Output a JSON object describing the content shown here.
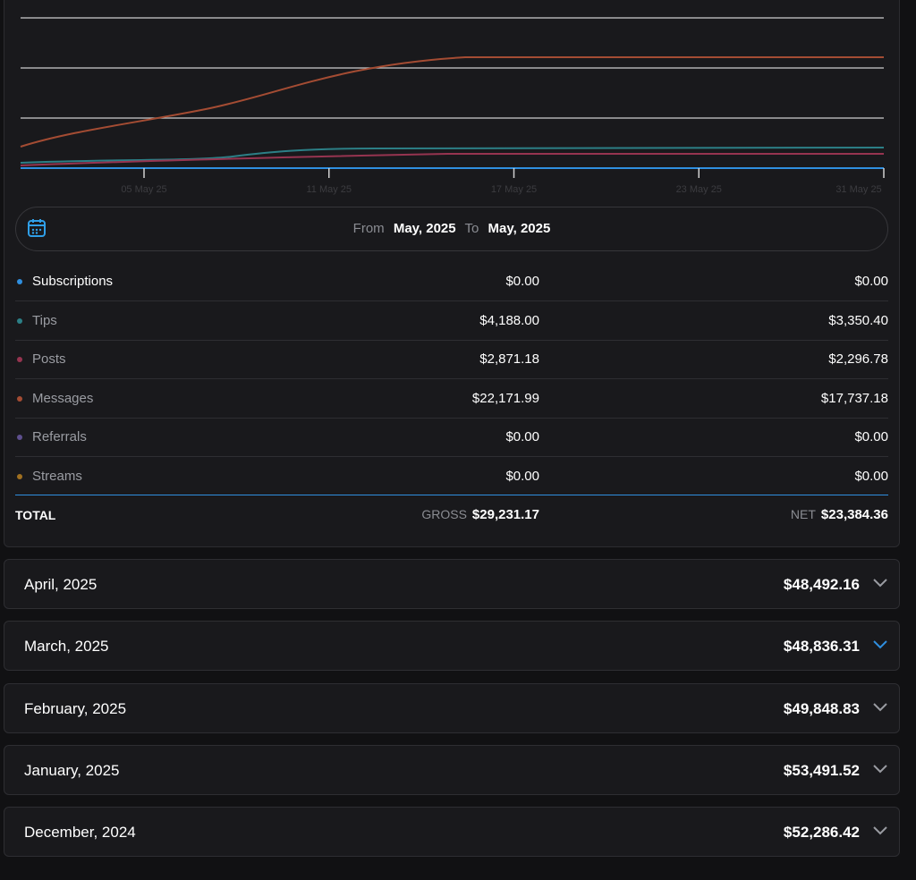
{
  "chart": {
    "x_tick_labels": [
      "05 May 25",
      "11 May 25",
      "17 May 25",
      "23 May 25",
      "31 May 25"
    ]
  },
  "date_range": {
    "from_label": "From",
    "from": "May, 2025",
    "to_label": "To",
    "to": "May, 2025"
  },
  "breakdown": {
    "rows": [
      {
        "name": "Subscriptions",
        "gross": "$0.00",
        "net": "$0.00",
        "color": "#2f8fe0"
      },
      {
        "name": "Tips",
        "gross": "$4,188.00",
        "net": "$3,350.40",
        "color": "#2c7f86"
      },
      {
        "name": "Posts",
        "gross": "$2,871.18",
        "net": "$2,296.78",
        "color": "#963450"
      },
      {
        "name": "Messages",
        "gross": "$22,171.99",
        "net": "$17,737.18",
        "color": "#a44c33"
      },
      {
        "name": "Referrals",
        "gross": "$0.00",
        "net": "$0.00",
        "color": "#5e4f8e"
      },
      {
        "name": "Streams",
        "gross": "$0.00",
        "net": "$0.00",
        "color": "#a07020"
      }
    ],
    "total": {
      "label": "TOTAL",
      "gross_label": "GROSS",
      "gross": "$29,231.17",
      "net_label": "NET",
      "net": "$23,384.36"
    }
  },
  "months": [
    {
      "name": "April, 2025",
      "amount": "$48,492.16"
    },
    {
      "name": "March, 2025",
      "amount": "$48,836.31"
    },
    {
      "name": "February, 2025",
      "amount": "$49,848.83"
    },
    {
      "name": "January, 2025",
      "amount": "$53,491.52"
    },
    {
      "name": "December, 2024",
      "amount": "$52,286.42"
    }
  ]
}
